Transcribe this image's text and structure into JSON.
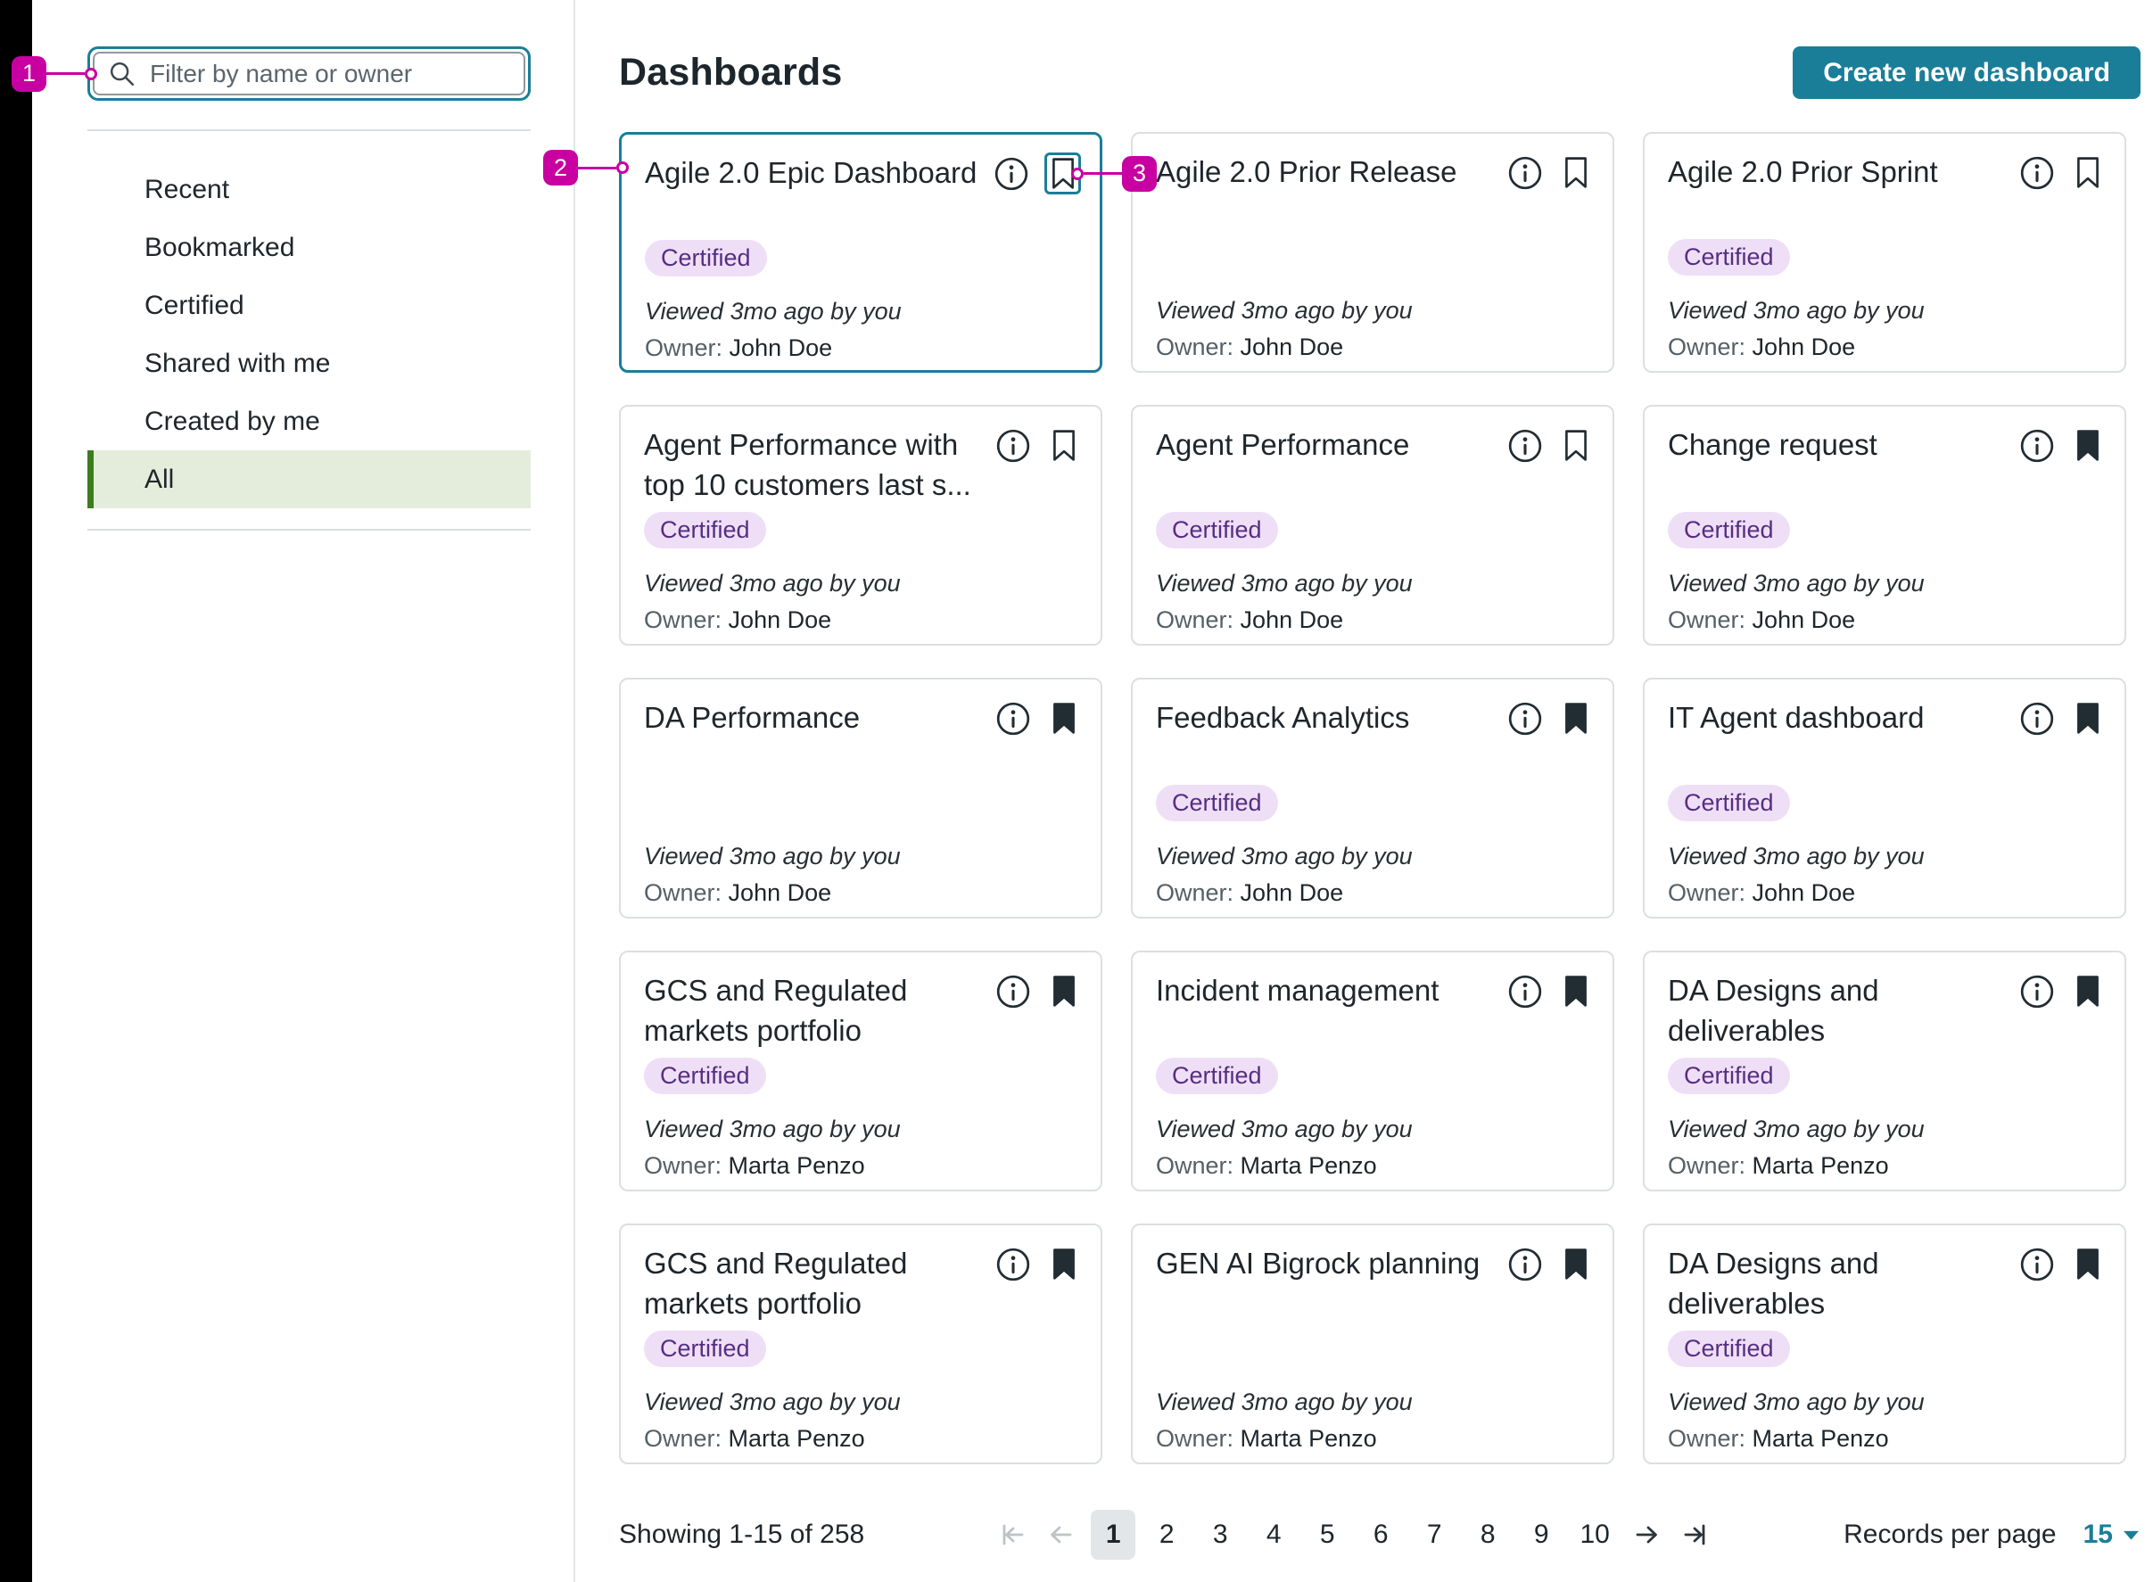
{
  "colors": {
    "accent_teal": "#1A7E98",
    "annotation_magenta": "#C800A1",
    "certified_bg": "#EFDFF6",
    "certified_text": "#562E83",
    "selected_green_bg": "#E4ECDC",
    "selected_green_bar": "#3E7D1E"
  },
  "sidebar": {
    "search_placeholder": "Filter by name or owner",
    "items": [
      {
        "label": "Recent",
        "selected": false
      },
      {
        "label": "Bookmarked",
        "selected": false
      },
      {
        "label": "Certified",
        "selected": false
      },
      {
        "label": "Shared with me",
        "selected": false
      },
      {
        "label": "Created by me",
        "selected": false
      },
      {
        "label": "All",
        "selected": true
      }
    ]
  },
  "header": {
    "title": "Dashboards",
    "create_button": "Create new dashboard"
  },
  "certified_badge_label": "Certified",
  "cards": [
    {
      "title": "Agile 2.0 Epic Dashboard",
      "certified": true,
      "viewed": "Viewed 3mo ago by you",
      "owner_label": "Owner:",
      "owner": "John Doe",
      "bookmark": "outline",
      "card_highlighted": true,
      "bookmark_highlighted": true
    },
    {
      "title": "Agile 2.0 Prior Release",
      "certified": false,
      "viewed": "Viewed 3mo ago by you",
      "owner_label": "Owner:",
      "owner": "John Doe",
      "bookmark": "outline",
      "card_highlighted": false,
      "bookmark_highlighted": false
    },
    {
      "title": "Agile 2.0 Prior Sprint",
      "certified": true,
      "viewed": "Viewed 3mo ago by you",
      "owner_label": "Owner:",
      "owner": "John Doe",
      "bookmark": "outline",
      "card_highlighted": false,
      "bookmark_highlighted": false
    },
    {
      "title": "Agent Performance with top 10 customers last s...",
      "certified": true,
      "viewed": "Viewed 3mo ago by you",
      "owner_label": "Owner:",
      "owner": "John Doe",
      "bookmark": "outline",
      "card_highlighted": false,
      "bookmark_highlighted": false
    },
    {
      "title": "Agent Performance",
      "certified": true,
      "viewed": "Viewed 3mo ago by you",
      "owner_label": "Owner:",
      "owner": "John Doe",
      "bookmark": "outline",
      "card_highlighted": false,
      "bookmark_highlighted": false
    },
    {
      "title": "Change request",
      "certified": true,
      "viewed": "Viewed 3mo ago by you",
      "owner_label": "Owner:",
      "owner": "John Doe",
      "bookmark": "filled",
      "card_highlighted": false,
      "bookmark_highlighted": false
    },
    {
      "title": "DA Performance",
      "certified": false,
      "viewed": "Viewed 3mo ago by you",
      "owner_label": "Owner:",
      "owner": "John Doe",
      "bookmark": "filled",
      "card_highlighted": false,
      "bookmark_highlighted": false
    },
    {
      "title": "Feedback Analytics",
      "certified": true,
      "viewed": "Viewed 3mo ago by you",
      "owner_label": "Owner:",
      "owner": "John Doe",
      "bookmark": "filled",
      "card_highlighted": false,
      "bookmark_highlighted": false
    },
    {
      "title": "IT Agent dashboard",
      "certified": true,
      "viewed": "Viewed 3mo ago by you",
      "owner_label": "Owner:",
      "owner": "John Doe",
      "bookmark": "filled",
      "card_highlighted": false,
      "bookmark_highlighted": false
    },
    {
      "title": "GCS and Regulated markets portfolio",
      "certified": true,
      "viewed": "Viewed 3mo ago by you",
      "owner_label": "Owner:",
      "owner": "Marta Penzo",
      "bookmark": "filled",
      "card_highlighted": false,
      "bookmark_highlighted": false
    },
    {
      "title": "Incident management",
      "certified": true,
      "viewed": "Viewed 3mo ago by you",
      "owner_label": "Owner:",
      "owner": "Marta Penzo",
      "bookmark": "filled",
      "card_highlighted": false,
      "bookmark_highlighted": false
    },
    {
      "title": "DA Designs and deliverables",
      "certified": true,
      "viewed": "Viewed 3mo ago by you",
      "owner_label": "Owner:",
      "owner": "Marta Penzo",
      "bookmark": "filled",
      "card_highlighted": false,
      "bookmark_highlighted": false
    },
    {
      "title": "GCS and Regulated markets portfolio",
      "certified": true,
      "viewed": "Viewed 3mo ago by you",
      "owner_label": "Owner:",
      "owner": "Marta Penzo",
      "bookmark": "filled",
      "card_highlighted": false,
      "bookmark_highlighted": false
    },
    {
      "title": "GEN AI Bigrock planning",
      "certified": false,
      "viewed": "Viewed 3mo ago by you",
      "owner_label": "Owner:",
      "owner": "Marta Penzo",
      "bookmark": "filled",
      "card_highlighted": false,
      "bookmark_highlighted": false
    },
    {
      "title": "DA Designs and deliverables",
      "certified": true,
      "viewed": "Viewed 3mo ago by you",
      "owner_label": "Owner:",
      "owner": "Marta Penzo",
      "bookmark": "filled",
      "card_highlighted": false,
      "bookmark_highlighted": false
    }
  ],
  "pagination": {
    "showing": "Showing 1-15 of 258",
    "pages": [
      "1",
      "2",
      "3",
      "4",
      "5",
      "6",
      "7",
      "8",
      "9",
      "10"
    ],
    "current_page": "1",
    "records_per_page_label": "Records per page",
    "records_per_page_value": "15"
  },
  "annotations": {
    "items": [
      {
        "number": "1"
      },
      {
        "number": "2"
      },
      {
        "number": "3"
      }
    ]
  }
}
